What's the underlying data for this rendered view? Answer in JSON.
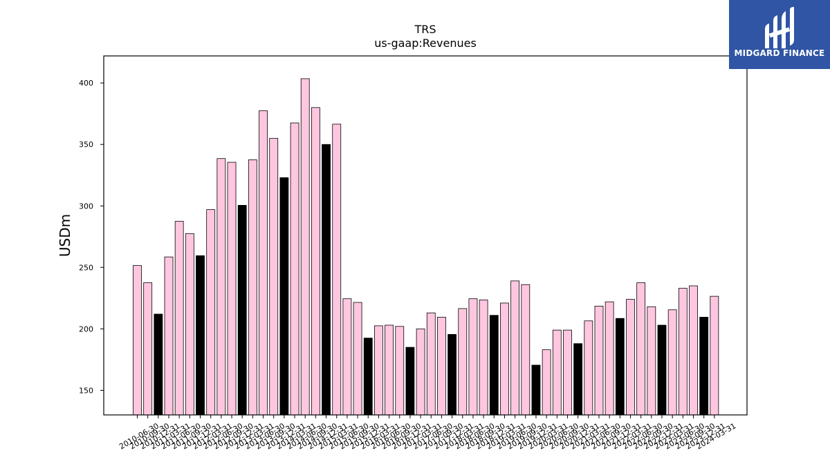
{
  "logo": {
    "text": "MIDGARD FINANCE",
    "background": "#2f55a4"
  },
  "chart_data": {
    "type": "bar",
    "title": "TRS",
    "subtitle": "us-gaap:Revenues",
    "xlabel": "",
    "ylabel": "USDm",
    "ylim": [
      130,
      422
    ],
    "yticks": [
      150,
      200,
      250,
      300,
      350,
      400
    ],
    "grid": false,
    "colors": {
      "quarter": "#ffc6e0",
      "fiscal_year_end": "#000000",
      "edge": "#000000"
    },
    "categories": [
      "2010-06-30",
      "2010-09-30",
      "2010-12-31",
      "2011-03-31",
      "2011-06-30",
      "2011-09-30",
      "2011-12-31",
      "2012-03-31",
      "2012-06-30",
      "2012-09-30",
      "2012-12-31",
      "2013-03-31",
      "2013-06-30",
      "2013-09-30",
      "2013-12-31",
      "2014-03-31",
      "2014-06-30",
      "2014-09-30",
      "2014-12-31",
      "2015-03-31",
      "2015-06-30",
      "2015-09-30",
      "2015-12-31",
      "2016-03-31",
      "2016-06-30",
      "2016-09-30",
      "2016-12-31",
      "2017-03-31",
      "2017-06-30",
      "2017-09-30",
      "2017-12-31",
      "2018-03-31",
      "2018-06-30",
      "2018-09-30",
      "2018-12-31",
      "2019-03-31",
      "2019-06-30",
      "2019-09-30",
      "2019-12-31",
      "2020-03-31",
      "2020-06-30",
      "2020-09-30",
      "2020-12-31",
      "2021-03-31",
      "2021-06-30",
      "2021-09-30",
      "2021-12-31",
      "2022-03-31",
      "2022-06-30",
      "2022-09-30",
      "2022-12-31",
      "2023-03-31",
      "2023-06-30",
      "2023-09-30",
      "2023-12-31",
      "2024-03-31"
    ],
    "values": [
      251.5,
      237.5,
      212,
      258.5,
      287.5,
      277.5,
      259.5,
      297,
      338.5,
      335.5,
      300.5,
      337.5,
      377.5,
      355,
      323,
      367.5,
      403.5,
      380,
      350,
      366.5,
      224.5,
      221.5,
      192.5,
      202.5,
      203,
      202,
      185,
      200,
      213,
      209.5,
      195.5,
      216.5,
      224.5,
      223.5,
      211,
      221,
      239,
      236,
      170.5,
      183,
      199,
      199,
      188,
      206.5,
      218.5,
      222,
      208.5,
      224,
      237.5,
      218,
      203,
      215.5,
      233,
      235,
      209.5,
      226.5
    ],
    "highlight": [
      false,
      false,
      true,
      false,
      false,
      false,
      true,
      false,
      false,
      false,
      true,
      false,
      false,
      false,
      true,
      false,
      false,
      false,
      true,
      false,
      false,
      false,
      true,
      false,
      false,
      false,
      true,
      false,
      false,
      false,
      true,
      false,
      false,
      false,
      true,
      false,
      false,
      false,
      true,
      false,
      false,
      false,
      true,
      false,
      false,
      false,
      true,
      false,
      false,
      false,
      true,
      false,
      false,
      false,
      true,
      false
    ]
  }
}
